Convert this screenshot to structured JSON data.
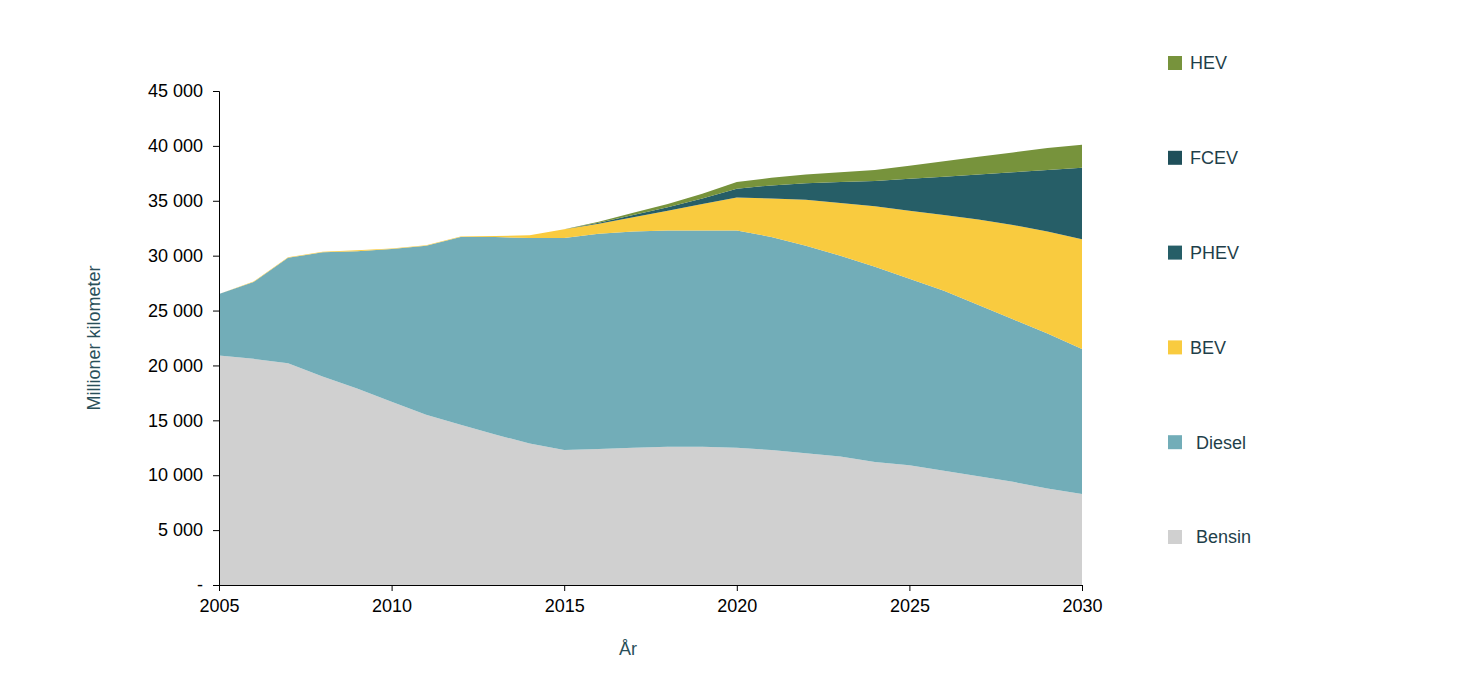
{
  "chart_data": {
    "type": "area",
    "stacked": true,
    "legend": "right",
    "grid": false,
    "x_label": "År",
    "y_label": "Millioner kilometer",
    "x": [
      2005,
      2006,
      2007,
      2008,
      2009,
      2010,
      2011,
      2012,
      2013,
      2014,
      2015,
      2016,
      2017,
      2018,
      2019,
      2020,
      2021,
      2022,
      2023,
      2024,
      2025,
      2026,
      2027,
      2028,
      2029,
      2030
    ],
    "xlim": [
      2005,
      2030
    ],
    "xticks": [
      2005,
      2010,
      2015,
      2020,
      2025,
      2030
    ],
    "ylim": [
      0,
      45000
    ],
    "yticks": [
      {
        "value": 0,
        "label": "-"
      },
      {
        "value": 5000,
        "label": "5 000"
      },
      {
        "value": 10000,
        "label": "10 000"
      },
      {
        "value": 15000,
        "label": "15 000"
      },
      {
        "value": 20000,
        "label": "20 000"
      },
      {
        "value": 25000,
        "label": "25 000"
      },
      {
        "value": 30000,
        "label": "30 000"
      },
      {
        "value": 35000,
        "label": "35 000"
      },
      {
        "value": 40000,
        "label": "40 000"
      },
      {
        "value": 45000,
        "label": "45 000"
      }
    ],
    "series": [
      {
        "name": "Bensin",
        "color": "#d0d0d0",
        "values": [
          20900,
          20600,
          20200,
          19000,
          17900,
          16700,
          15500,
          14600,
          13700,
          12900,
          12300,
          12400,
          12500,
          12600,
          12600,
          12500,
          12300,
          12000,
          11700,
          11200,
          10900,
          10400,
          9900,
          9400,
          8800,
          8300
        ]
      },
      {
        "name": "Diesel",
        "color": "#72adb8",
        "values": [
          5600,
          7000,
          9600,
          11300,
          12500,
          13900,
          15400,
          17100,
          18000,
          18700,
          19300,
          19600,
          19700,
          19700,
          19700,
          19800,
          19400,
          18900,
          18300,
          17800,
          17000,
          16400,
          15600,
          14800,
          14100,
          13200
        ]
      },
      {
        "name": "BEV",
        "color": "#f9cb3f",
        "values": [
          0,
          50,
          50,
          50,
          100,
          50,
          50,
          50,
          100,
          250,
          800,
          900,
          1300,
          1800,
          2400,
          3000,
          3500,
          4200,
          4800,
          5500,
          6200,
          6900,
          7800,
          8600,
          9300,
          10000
        ]
      },
      {
        "name": "PHEV",
        "color": "#265e67",
        "values": [
          0,
          0,
          0,
          0,
          0,
          0,
          0,
          0,
          0,
          0,
          0,
          100,
          200,
          300,
          500,
          800,
          1200,
          1500,
          1900,
          2300,
          2900,
          3500,
          4100,
          4800,
          5600,
          6500
        ]
      },
      {
        "name": "FCEV",
        "color": "#1f4f5a",
        "values": [
          0,
          0,
          0,
          0,
          0,
          0,
          0,
          0,
          0,
          0,
          0,
          0,
          0,
          0,
          0,
          0,
          0,
          0,
          0,
          0,
          0,
          0,
          0,
          0,
          0,
          0
        ]
      },
      {
        "name": "HEV",
        "color": "#77933c",
        "values": [
          0,
          0,
          0,
          0,
          0,
          0,
          0,
          0,
          0,
          0,
          0,
          100,
          200,
          300,
          450,
          600,
          700,
          800,
          900,
          1000,
          1200,
          1400,
          1600,
          1800,
          2000,
          2100
        ]
      }
    ]
  }
}
